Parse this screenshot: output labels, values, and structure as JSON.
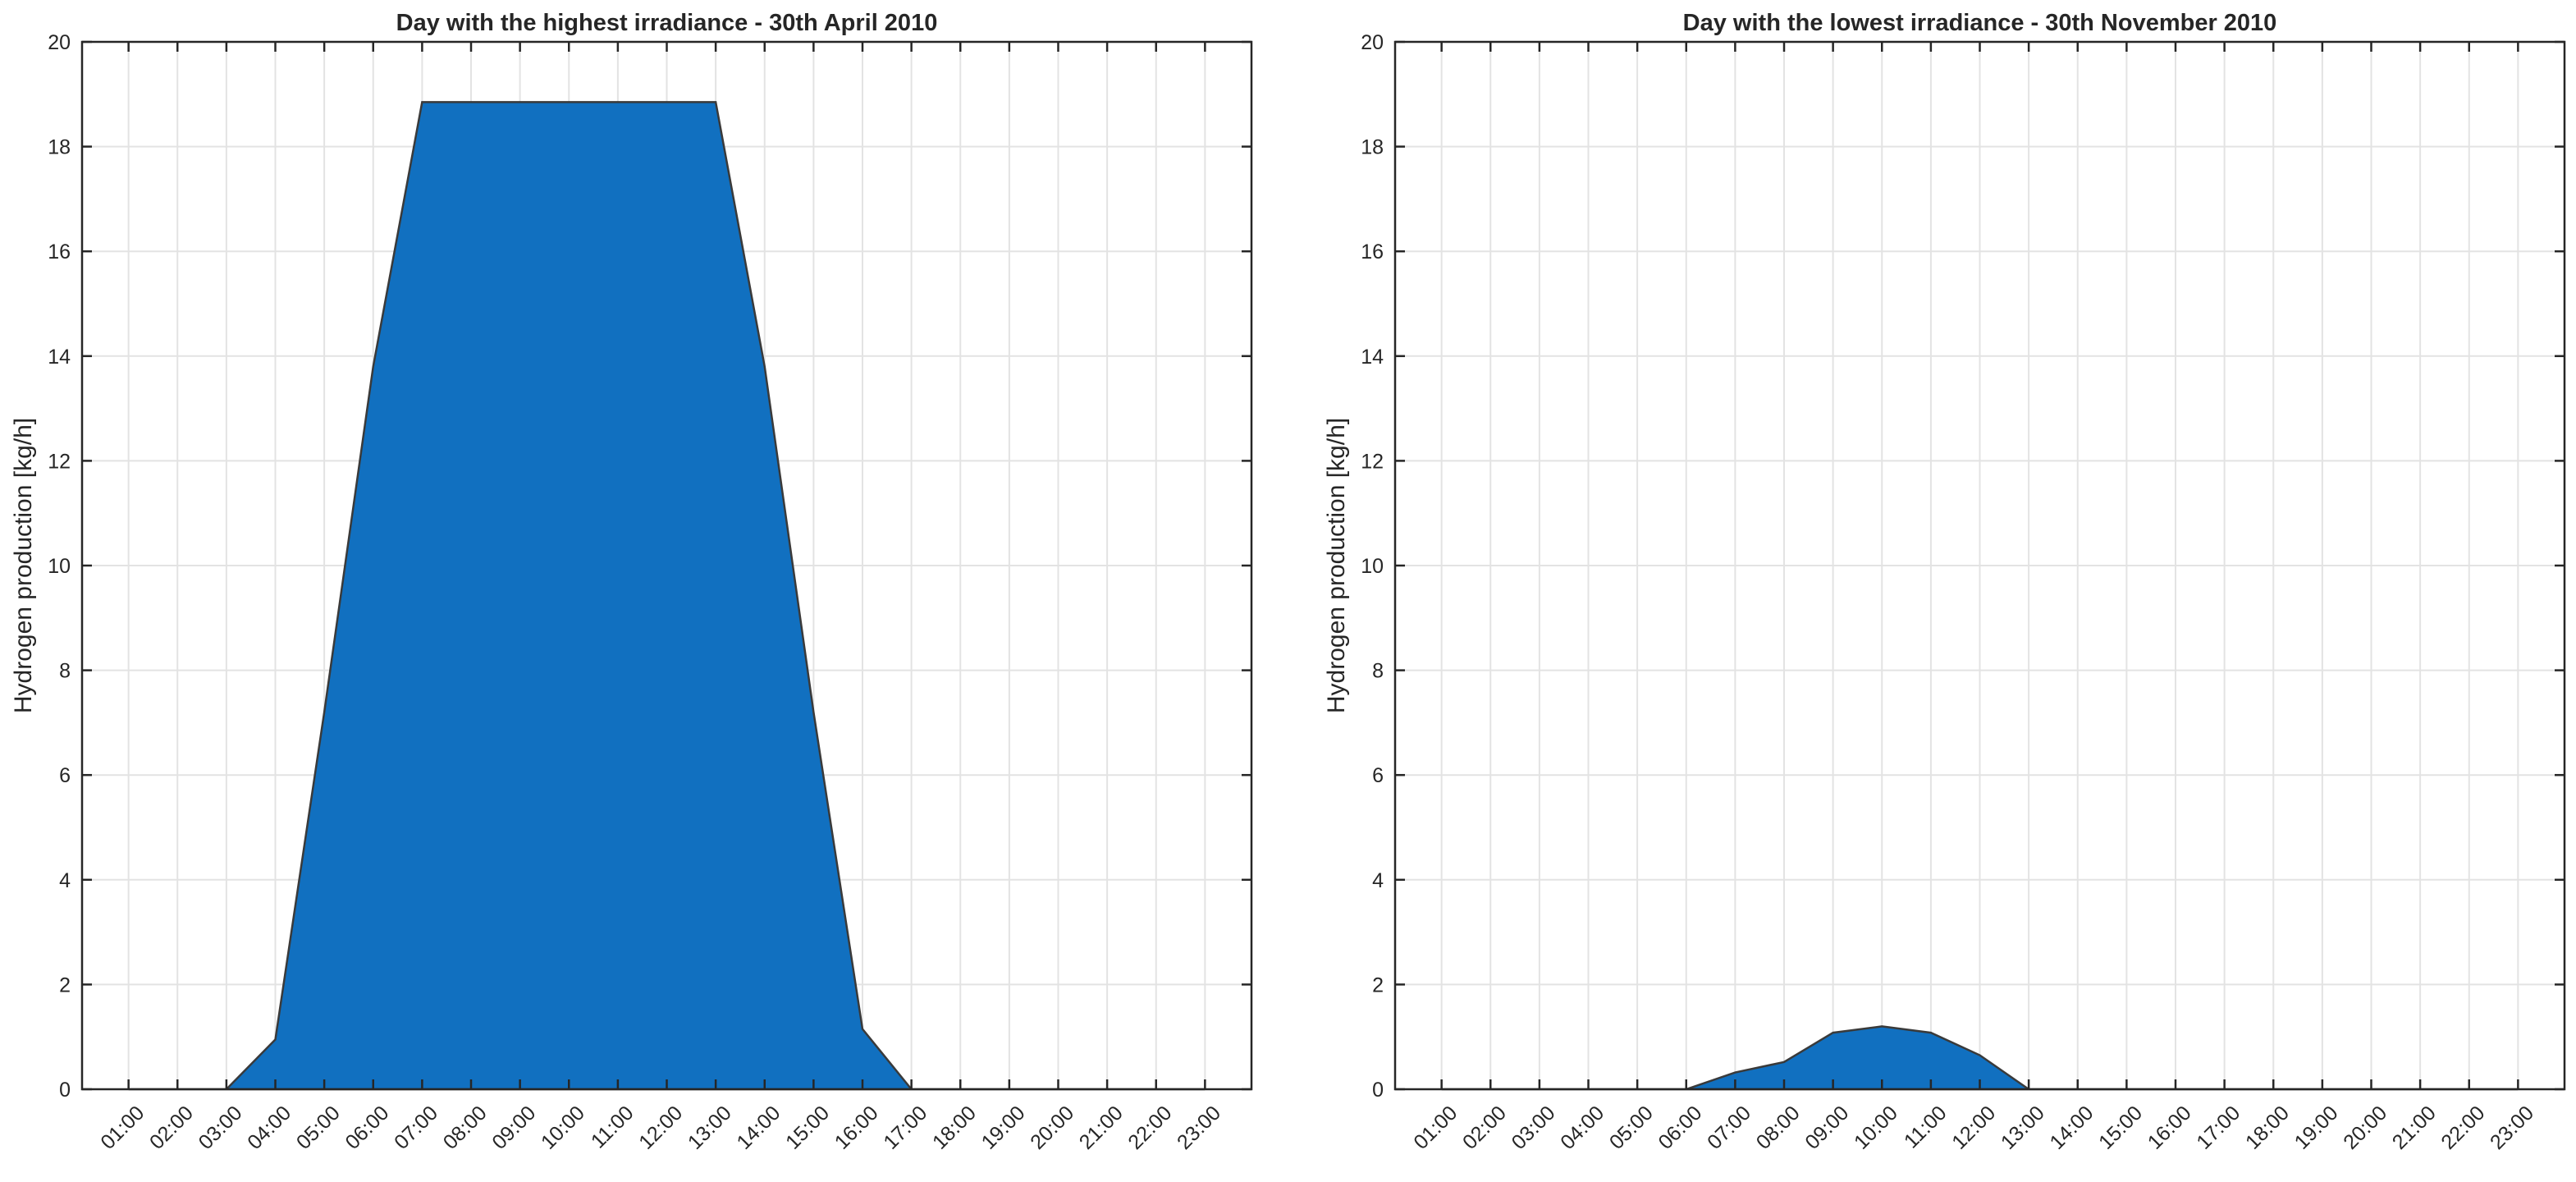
{
  "chart_data": [
    {
      "type": "area",
      "title": "Day with the highest irradiance - 30th April 2010",
      "xlabel": "",
      "ylabel": "Hydrogen production [kg/h]",
      "ylim": [
        0,
        20
      ],
      "yticks": [
        0,
        2,
        4,
        6,
        8,
        10,
        12,
        14,
        16,
        18,
        20
      ],
      "categories": [
        "01:00",
        "02:00",
        "03:00",
        "04:00",
        "05:00",
        "06:00",
        "07:00",
        "08:00",
        "09:00",
        "10:00",
        "11:00",
        "12:00",
        "13:00",
        "14:00",
        "15:00",
        "16:00",
        "17:00",
        "18:00",
        "19:00",
        "20:00",
        "21:00",
        "22:00",
        "23:00"
      ],
      "values": [
        0,
        0,
        0,
        0.95,
        7.2,
        13.8,
        18.85,
        18.85,
        18.85,
        18.85,
        18.85,
        18.85,
        18.85,
        13.8,
        7.2,
        1.15,
        0,
        0,
        0,
        0,
        0,
        0,
        0
      ],
      "fill_color": "#1170c0",
      "grid": true
    },
    {
      "type": "area",
      "title": "Day with the lowest irradiance - 30th November 2010",
      "xlabel": "",
      "ylabel": "Hydrogen production [kg/h]",
      "ylim": [
        0,
        20
      ],
      "yticks": [
        0,
        2,
        4,
        6,
        8,
        10,
        12,
        14,
        16,
        18,
        20
      ],
      "categories": [
        "01:00",
        "02:00",
        "03:00",
        "04:00",
        "05:00",
        "06:00",
        "07:00",
        "08:00",
        "09:00",
        "10:00",
        "11:00",
        "12:00",
        "13:00",
        "14:00",
        "15:00",
        "16:00",
        "17:00",
        "18:00",
        "19:00",
        "20:00",
        "21:00",
        "22:00",
        "23:00"
      ],
      "values": [
        0,
        0,
        0,
        0,
        0,
        0,
        0.32,
        0.52,
        1.08,
        1.2,
        1.08,
        0.65,
        0,
        0,
        0,
        0,
        0,
        0,
        0,
        0,
        0,
        0,
        0
      ],
      "fill_color": "#1170c0",
      "grid": true
    }
  ]
}
